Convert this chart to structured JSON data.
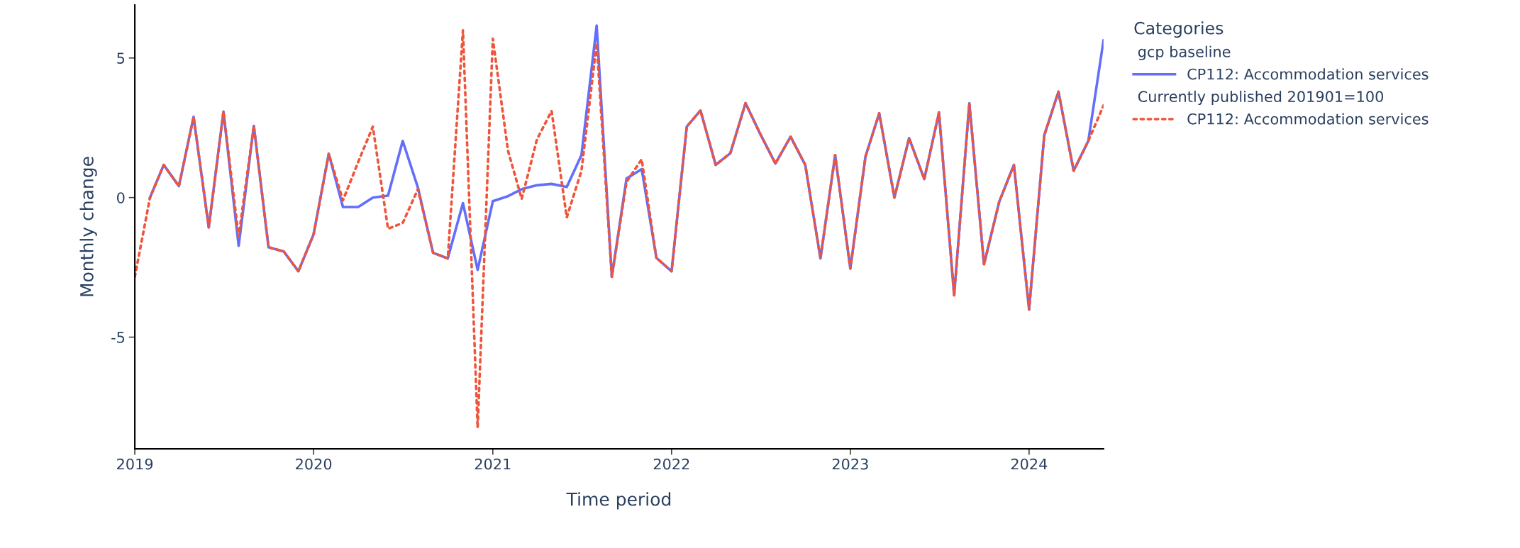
{
  "chart_data": {
    "type": "line",
    "xlabel": "Time period",
    "ylabel": "Monthly change",
    "legend_title": "Categories",
    "annotations": [
      "gcp baseline",
      "Currently published 201901=100"
    ],
    "x": [
      "2019-01",
      "2019-02",
      "2019-03",
      "2019-04",
      "2019-05",
      "2019-06",
      "2019-07",
      "2019-08",
      "2019-09",
      "2019-10",
      "2019-11",
      "2019-12",
      "2020-01",
      "2020-02",
      "2020-03",
      "2020-04",
      "2020-05",
      "2020-06",
      "2020-07",
      "2020-08",
      "2020-09",
      "2020-10",
      "2020-11",
      "2020-12",
      "2021-01",
      "2021-02",
      "2021-03",
      "2021-04",
      "2021-05",
      "2021-06",
      "2021-07",
      "2021-08",
      "2021-09",
      "2021-10",
      "2021-11",
      "2021-12",
      "2022-01",
      "2022-02",
      "2022-03",
      "2022-04",
      "2022-05",
      "2022-06",
      "2022-07",
      "2022-08",
      "2022-09",
      "2022-10",
      "2022-11",
      "2022-12",
      "2023-01",
      "2023-02",
      "2023-03",
      "2023-04",
      "2023-05",
      "2023-06",
      "2023-07",
      "2023-08",
      "2023-09",
      "2023-10",
      "2023-11",
      "2023-12",
      "2024-01",
      "2024-02",
      "2024-03",
      "2024-04",
      "2024-05",
      "2024-06"
    ],
    "series": [
      {
        "name": "CP112: Accommodation services",
        "color": "#636efa",
        "line_style": "solid",
        "values": [
          null,
          0,
          1.17,
          0.41,
          2.89,
          -1.07,
          3.08,
          -1.73,
          2.57,
          -1.78,
          -1.93,
          -2.64,
          -1.32,
          1.57,
          -0.34,
          -0.34,
          0,
          0.07,
          2.03,
          0.36,
          -1.98,
          -2.18,
          -0.2,
          -2.59,
          -0.13,
          0.05,
          0.3,
          0.44,
          0.49,
          0.38,
          1.52,
          6.16,
          -2.84,
          0.68,
          1.02,
          -2.16,
          -2.64,
          2.54,
          3.12,
          1.17,
          1.59,
          3.38,
          2.28,
          1.22,
          2.18,
          1.17,
          -2.18,
          1.52,
          -2.54,
          1.47,
          3.02,
          0,
          2.13,
          0.66,
          3.05,
          -3.5,
          3.38,
          -2.39,
          -0.15,
          1.17,
          -4.01,
          2.23,
          3.79,
          0.96,
          2.03,
          5.63
        ]
      },
      {
        "name": "CP112: Accommodation services",
        "color": "#ef553b",
        "line_style": "dotted",
        "values": [
          -2.84,
          0,
          1.17,
          0.41,
          2.89,
          -1.07,
          3.08,
          -1.4,
          2.57,
          -1.78,
          -1.93,
          -2.64,
          -1.32,
          1.57,
          -0.1,
          1.27,
          2.54,
          -1.12,
          -0.91,
          0.3,
          -1.98,
          -2.18,
          5.99,
          -8.25,
          5.69,
          1.68,
          -0.05,
          2.08,
          3.1,
          -0.71,
          0.96,
          5.53,
          -2.84,
          0.56,
          1.37,
          -2.16,
          -2.64,
          2.54,
          3.12,
          1.17,
          1.59,
          3.38,
          2.28,
          1.22,
          2.18,
          1.17,
          -2.18,
          1.52,
          -2.54,
          1.47,
          3.02,
          0,
          2.13,
          0.66,
          3.05,
          -3.5,
          3.38,
          -2.39,
          -0.15,
          1.17,
          -4.01,
          2.23,
          3.79,
          0.96,
          2.03,
          3.3
        ]
      }
    ],
    "xlim": [
      "2019-01",
      "2024-06"
    ],
    "xticks": [
      {
        "value": "2019-01",
        "label": "2019"
      },
      {
        "value": "2020-01",
        "label": "2020"
      },
      {
        "value": "2021-01",
        "label": "2021"
      },
      {
        "value": "2022-01",
        "label": "2022"
      },
      {
        "value": "2023-01",
        "label": "2023"
      },
      {
        "value": "2024-01",
        "label": "2024"
      }
    ],
    "ylim": [
      -9.0,
      6.9
    ],
    "yticks": [
      -5,
      0,
      5
    ],
    "grid": false,
    "legend": "top right",
    "marker": "none"
  }
}
